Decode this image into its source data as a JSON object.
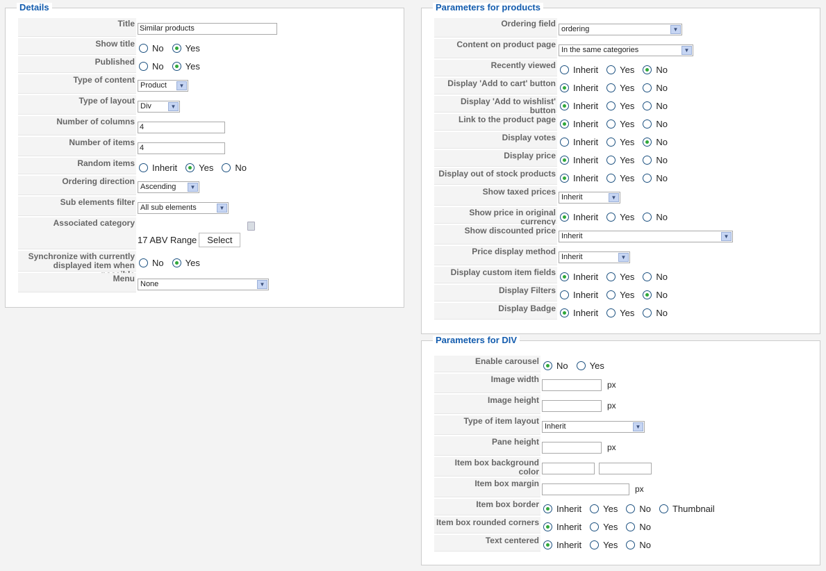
{
  "details": {
    "legend": "Details",
    "fields": [
      {
        "label": "Title",
        "type": "text",
        "value": "Similar products"
      },
      {
        "label": "Show title",
        "type": "radio",
        "options": [
          "No",
          "Yes"
        ],
        "selected": 1
      },
      {
        "label": "Published",
        "type": "radio",
        "options": [
          "No",
          "Yes"
        ],
        "selected": 1
      },
      {
        "label": "Type of content",
        "type": "select",
        "value": "Product"
      },
      {
        "label": "Type of layout",
        "type": "select",
        "value": "Div"
      },
      {
        "label": "Number of columns",
        "type": "text",
        "value": "4"
      },
      {
        "label": "Number of items",
        "type": "text",
        "value": "4"
      },
      {
        "label": "Random items",
        "type": "radio",
        "options": [
          "Inherit",
          "Yes",
          "No"
        ],
        "selected": 1
      },
      {
        "label": "Ordering direction",
        "type": "select",
        "value": "Ascending"
      },
      {
        "label": "Sub elements filter",
        "type": "select",
        "value": "All sub elements"
      },
      {
        "label": "Associated category",
        "type": "category",
        "value": "17 ABV Range",
        "button": "Select"
      },
      {
        "label": "Synchronize with currently displayed item when possible",
        "type": "radio",
        "options": [
          "No",
          "Yes"
        ],
        "selected": 1
      },
      {
        "label": "Menu",
        "type": "select",
        "value": "None"
      }
    ]
  },
  "products": {
    "legend": "Parameters for products",
    "fields": [
      {
        "label": "Ordering field",
        "type": "select",
        "value": "ordering"
      },
      {
        "label": "Content on product page",
        "type": "select",
        "value": "In the same categories"
      },
      {
        "label": "Recently viewed",
        "type": "radio",
        "options": [
          "Inherit",
          "Yes",
          "No"
        ],
        "selected": 2
      },
      {
        "label": "Display 'Add to cart' button",
        "type": "radio",
        "options": [
          "Inherit",
          "Yes",
          "No"
        ],
        "selected": 0
      },
      {
        "label": "Display 'Add to wishlist' button",
        "type": "radio",
        "options": [
          "Inherit",
          "Yes",
          "No"
        ],
        "selected": 0
      },
      {
        "label": "Link to the product page",
        "type": "radio",
        "options": [
          "Inherit",
          "Yes",
          "No"
        ],
        "selected": 0
      },
      {
        "label": "Display votes",
        "type": "radio",
        "options": [
          "Inherit",
          "Yes",
          "No"
        ],
        "selected": 2
      },
      {
        "label": "Display price",
        "type": "radio",
        "options": [
          "Inherit",
          "Yes",
          "No"
        ],
        "selected": 0
      },
      {
        "label": "Display out of stock products",
        "type": "radio",
        "options": [
          "Inherit",
          "Yes",
          "No"
        ],
        "selected": 0
      },
      {
        "label": "Show taxed prices",
        "type": "select",
        "value": "Inherit"
      },
      {
        "label": "Show price in original currency",
        "type": "radio",
        "options": [
          "Inherit",
          "Yes",
          "No"
        ],
        "selected": 0
      },
      {
        "label": "Show discounted price",
        "type": "select",
        "value": "Inherit"
      },
      {
        "label": "Price display method",
        "type": "select",
        "value": "Inherit"
      },
      {
        "label": "Display custom item fields",
        "type": "radio",
        "options": [
          "Inherit",
          "Yes",
          "No"
        ],
        "selected": 0
      },
      {
        "label": "Display Filters",
        "type": "radio",
        "options": [
          "Inherit",
          "Yes",
          "No"
        ],
        "selected": 2
      },
      {
        "label": "Display Badge",
        "type": "radio",
        "options": [
          "Inherit",
          "Yes",
          "No"
        ],
        "selected": 0
      }
    ]
  },
  "div": {
    "legend": "Parameters for DIV",
    "fields": [
      {
        "label": "Enable carousel",
        "type": "radio",
        "options": [
          "No",
          "Yes"
        ],
        "selected": 0
      },
      {
        "label": "Image width",
        "type": "text",
        "value": "",
        "unit": "px"
      },
      {
        "label": "Image height",
        "type": "text",
        "value": "",
        "unit": "px"
      },
      {
        "label": "Type of item layout",
        "type": "select",
        "value": "Inherit"
      },
      {
        "label": "Pane height",
        "type": "text",
        "value": "",
        "unit": "px"
      },
      {
        "label": "Item box background color",
        "type": "text2",
        "value": ""
      },
      {
        "label": "Item box margin",
        "type": "text",
        "value": "",
        "unit": "px"
      },
      {
        "label": "Item box border",
        "type": "radio",
        "options": [
          "Inherit",
          "Yes",
          "No",
          "Thumbnail"
        ],
        "selected": 0
      },
      {
        "label": "Item box rounded corners",
        "type": "radio",
        "options": [
          "Inherit",
          "Yes",
          "No"
        ],
        "selected": 0
      },
      {
        "label": "Text centered",
        "type": "radio",
        "options": [
          "Inherit",
          "Yes",
          "No"
        ],
        "selected": 0
      }
    ]
  }
}
